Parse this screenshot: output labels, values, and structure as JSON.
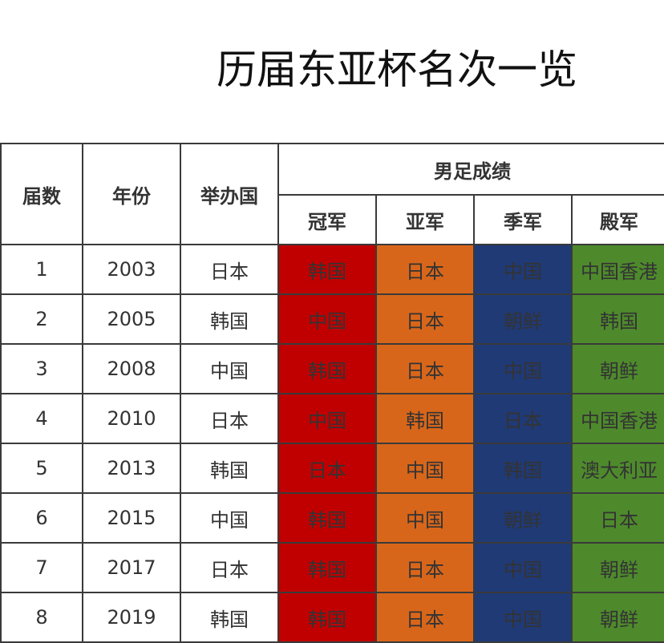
{
  "title": "历届东亚杯名次一览",
  "headers": {
    "edition": "届数",
    "year": "年份",
    "host": "举办国",
    "group": "男足成绩",
    "champion": "冠军",
    "runner_up": "亚军",
    "third": "季军",
    "fourth": "殿军"
  },
  "colors": {
    "champion": "#c00000",
    "runner_up": "#d8661a",
    "third": "#203a76",
    "fourth": "#4e8a2c"
  },
  "rows": [
    {
      "edition": "1",
      "year": "2003",
      "host": "日本",
      "champion": "韩国",
      "runner_up": "日本",
      "third": "中国",
      "fourth": "中国香港"
    },
    {
      "edition": "2",
      "year": "2005",
      "host": "韩国",
      "champion": "中国",
      "runner_up": "日本",
      "third": "朝鲜",
      "fourth": "韩国"
    },
    {
      "edition": "3",
      "year": "2008",
      "host": "中国",
      "champion": "韩国",
      "runner_up": "日本",
      "third": "中国",
      "fourth": "朝鲜"
    },
    {
      "edition": "4",
      "year": "2010",
      "host": "日本",
      "champion": "中国",
      "runner_up": "韩国",
      "third": "日本",
      "fourth": "中国香港"
    },
    {
      "edition": "5",
      "year": "2013",
      "host": "韩国",
      "champion": "日本",
      "runner_up": "中国",
      "third": "韩国",
      "fourth": "澳大利亚"
    },
    {
      "edition": "6",
      "year": "2015",
      "host": "中国",
      "champion": "韩国",
      "runner_up": "中国",
      "third": "朝鲜",
      "fourth": "日本"
    },
    {
      "edition": "7",
      "year": "2017",
      "host": "日本",
      "champion": "韩国",
      "runner_up": "日本",
      "third": "中国",
      "fourth": "朝鲜"
    },
    {
      "edition": "8",
      "year": "2019",
      "host": "韩国",
      "champion": "韩国",
      "runner_up": "日本",
      "third": "中国",
      "fourth": "朝鲜"
    }
  ]
}
